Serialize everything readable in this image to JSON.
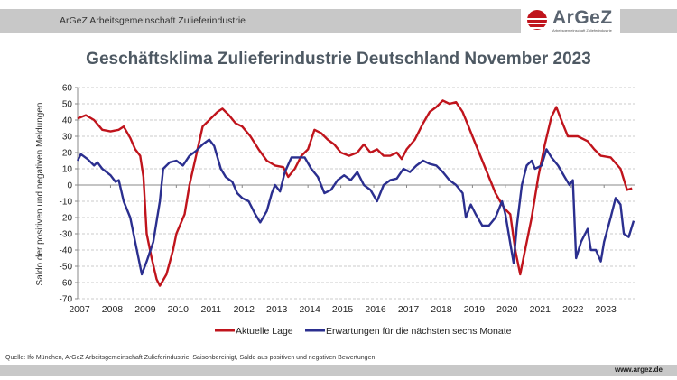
{
  "header": {
    "org_label": "ArGeZ Arbeitsgemeinschaft Zulieferindustrie",
    "logo_text": "ArGeZ",
    "logo_subtext": "Arbeitsgemeinschaft Zulieferindustrie"
  },
  "footer": {
    "source": "Quelle: Ifo München, ArGeZ Arbeitsgemeinschaft Zulieferindustrie, Saisonbereinigt, Saldo aus positiven und negativen Bewertungen",
    "url": "www.argez.de"
  },
  "colors": {
    "aktuelle_lage": "#c0141c",
    "erwartungen": "#2b2f8f",
    "grid": "#bbbbbb",
    "axis": "#888888"
  },
  "chart_data": {
    "type": "line",
    "title": "Geschäftsklima Zulieferindustrie Deutschland November 2023",
    "xlabel": "",
    "ylabel": "Saldo der positiven und negativen Meldungen",
    "xlim": [
      2007,
      2024
    ],
    "ylim": [
      -70,
      60
    ],
    "yticks": [
      60,
      50,
      40,
      30,
      20,
      10,
      0,
      -10,
      -20,
      -30,
      -40,
      -50,
      -60,
      -70
    ],
    "xtick_labels": [
      "2007",
      "2008",
      "2009",
      "2010",
      "2011",
      "2012",
      "2013",
      "2014",
      "2015",
      "2016",
      "2017",
      "2018",
      "2019",
      "2020",
      "2021",
      "2022",
      "2023"
    ],
    "grid": true,
    "legend_position": "bottom",
    "series": [
      {
        "name": "Aktuelle Lage",
        "color": "#c0141c",
        "x": [
          2007.0,
          2007.25,
          2007.5,
          2007.75,
          2008.0,
          2008.25,
          2008.4,
          2008.6,
          2008.75,
          2008.9,
          2009.0,
          2009.1,
          2009.25,
          2009.4,
          2009.5,
          2009.7,
          2009.9,
          2010.0,
          2010.25,
          2010.4,
          2010.6,
          2010.8,
          2011.0,
          2011.25,
          2011.4,
          2011.6,
          2011.8,
          2012.0,
          2012.25,
          2012.5,
          2012.75,
          2013.0,
          2013.25,
          2013.4,
          2013.6,
          2013.8,
          2014.0,
          2014.2,
          2014.4,
          2014.6,
          2014.8,
          2015.0,
          2015.25,
          2015.5,
          2015.7,
          2015.9,
          2016.1,
          2016.3,
          2016.5,
          2016.7,
          2016.85,
          2017.0,
          2017.25,
          2017.5,
          2017.7,
          2017.9,
          2018.1,
          2018.3,
          2018.5,
          2018.7,
          2018.9,
          2019.1,
          2019.3,
          2019.5,
          2019.7,
          2019.9,
          2020.0,
          2020.15,
          2020.3,
          2020.45,
          2020.6,
          2020.8,
          2021.0,
          2021.2,
          2021.4,
          2021.55,
          2021.7,
          2021.9,
          2022.2,
          2022.5,
          2022.7,
          2022.9,
          2023.2,
          2023.5,
          2023.7,
          2023.85
        ],
        "values": [
          41,
          43,
          40,
          34,
          33,
          34,
          36,
          29,
          22,
          18,
          5,
          -30,
          -45,
          -58,
          -62,
          -55,
          -40,
          -30,
          -18,
          0,
          18,
          36,
          40,
          45,
          47,
          43,
          38,
          36,
          30,
          22,
          15,
          12,
          11,
          5,
          10,
          18,
          22,
          34,
          32,
          28,
          25,
          20,
          18,
          20,
          25,
          20,
          22,
          18,
          18,
          20,
          16,
          22,
          28,
          38,
          45,
          48,
          52,
          50,
          51,
          45,
          35,
          25,
          15,
          5,
          -5,
          -12,
          -15,
          -18,
          -40,
          -55,
          -40,
          -20,
          5,
          25,
          42,
          48,
          40,
          30,
          30,
          27,
          22,
          18,
          17,
          10,
          -3,
          -2
        ]
      },
      {
        "name": "Erwartungen für die nächsten sechs Monate",
        "color": "#2b2f8f",
        "x": [
          2007.0,
          2007.1,
          2007.3,
          2007.5,
          2007.6,
          2007.75,
          2008.0,
          2008.15,
          2008.25,
          2008.4,
          2008.6,
          2008.8,
          2008.95,
          2009.1,
          2009.3,
          2009.5,
          2009.6,
          2009.8,
          2010.0,
          2010.2,
          2010.4,
          2010.6,
          2010.8,
          2011.0,
          2011.15,
          2011.35,
          2011.5,
          2011.7,
          2011.85,
          2012.0,
          2012.2,
          2012.4,
          2012.55,
          2012.75,
          2012.9,
          2013.0,
          2013.15,
          2013.3,
          2013.5,
          2013.7,
          2013.9,
          2014.1,
          2014.3,
          2014.5,
          2014.7,
          2014.9,
          2015.1,
          2015.3,
          2015.5,
          2015.7,
          2015.9,
          2016.1,
          2016.3,
          2016.5,
          2016.7,
          2016.9,
          2017.1,
          2017.3,
          2017.5,
          2017.7,
          2017.9,
          2018.1,
          2018.3,
          2018.5,
          2018.7,
          2018.8,
          2018.95,
          2019.1,
          2019.3,
          2019.5,
          2019.7,
          2019.9,
          2020.0,
          2020.1,
          2020.25,
          2020.35,
          2020.5,
          2020.65,
          2020.8,
          2020.9,
          2021.1,
          2021.25,
          2021.4,
          2021.6,
          2021.8,
          2021.95,
          2022.05,
          2022.15,
          2022.3,
          2022.5,
          2022.6,
          2022.75,
          2022.9,
          2023.0,
          2023.2,
          2023.35,
          2023.5,
          2023.6,
          2023.75,
          2023.9
        ],
        "values": [
          15,
          19,
          16,
          12,
          14,
          10,
          6,
          2,
          3,
          -10,
          -20,
          -40,
          -55,
          -47,
          -35,
          -10,
          10,
          14,
          15,
          12,
          18,
          21,
          25,
          28,
          24,
          10,
          5,
          2,
          -5,
          -8,
          -10,
          -18,
          -23,
          -16,
          -5,
          0,
          -4,
          8,
          17,
          17,
          17,
          10,
          5,
          -5,
          -3,
          3,
          6,
          3,
          8,
          0,
          -3,
          -10,
          0,
          3,
          4,
          10,
          8,
          12,
          15,
          13,
          12,
          8,
          3,
          0,
          -5,
          -20,
          -12,
          -18,
          -25,
          -25,
          -20,
          -10,
          -18,
          -30,
          -48,
          -25,
          0,
          12,
          15,
          10,
          12,
          22,
          17,
          12,
          5,
          0,
          3,
          -45,
          -35,
          -27,
          -40,
          -40,
          -47,
          -35,
          -20,
          -8,
          -12,
          -30,
          -32,
          -22
        ]
      }
    ]
  }
}
